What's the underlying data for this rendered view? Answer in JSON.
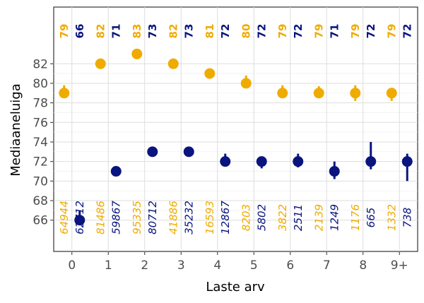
{
  "chart_data": {
    "type": "scatter",
    "xlabel": "Laste arv",
    "ylabel": "Mediaaneluiga",
    "categories": [
      "0",
      "1",
      "2",
      "3",
      "4",
      "5",
      "6",
      "7",
      "8",
      "9+"
    ],
    "y_ticks": [
      66,
      68,
      70,
      72,
      74,
      76,
      78,
      80,
      82
    ],
    "ylim": [
      62.8,
      87.8
    ],
    "grid": true,
    "series": [
      {
        "color": "#f0ab00",
        "values": [
          79,
          82,
          83,
          82,
          81,
          80,
          79,
          79,
          79,
          79
        ],
        "error_low": [
          78.6,
          82,
          83,
          82,
          81,
          79.5,
          78.5,
          78.5,
          78.2,
          78.2
        ],
        "error_high": [
          79.8,
          82,
          83,
          82,
          81,
          80.8,
          79.8,
          79.7,
          79.8,
          79.2
        ],
        "labels": [
          "79",
          "82",
          "83",
          "82",
          "81",
          "80",
          "79",
          "79",
          "79",
          "79"
        ],
        "counts": [
          "64944",
          "81486",
          "95335",
          "41886",
          "16593",
          "8203",
          "3822",
          "2139",
          "1176",
          "1332"
        ]
      },
      {
        "color": "#0a147e",
        "values": [
          66,
          71,
          73,
          73,
          72,
          72,
          72,
          71,
          72,
          72
        ],
        "error_low": [
          65.7,
          71,
          73,
          73,
          71.5,
          71.3,
          71.4,
          70.2,
          71.2,
          70
        ],
        "error_high": [
          67,
          71,
          73,
          73,
          72.8,
          72.5,
          72.8,
          72,
          74,
          72.8
        ],
        "labels": [
          "66",
          "71",
          "73",
          "73",
          "72",
          "72",
          "72",
          "71",
          "72",
          "72"
        ],
        "counts": [
          "62712",
          "59867",
          "80712",
          "35232",
          "12867",
          "5802",
          "2511",
          "1249",
          "665",
          "738"
        ]
      }
    ]
  }
}
